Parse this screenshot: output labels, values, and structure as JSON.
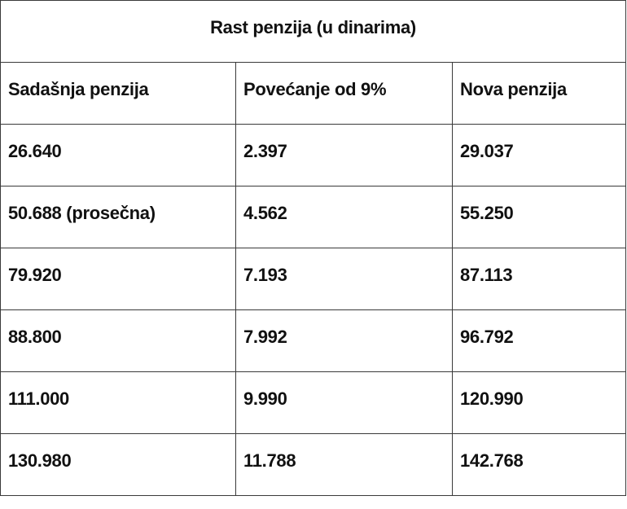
{
  "table": {
    "title": "Rast penzija (u dinarima)",
    "header": [
      "Sadašnja penzija",
      "Povećanje od 9%",
      "Nova penzija"
    ],
    "rows": [
      [
        "26.640",
        "2.397",
        "29.037"
      ],
      [
        "50.688 (prosečna)",
        "4.562",
        "55.250"
      ],
      [
        "79.920",
        "7.193",
        "87.113"
      ],
      [
        "88.800",
        "7.992",
        "96.792"
      ],
      [
        "111.000",
        "9.990",
        "120.990"
      ],
      [
        "130.980",
        "11.788",
        "142.768"
      ]
    ]
  }
}
